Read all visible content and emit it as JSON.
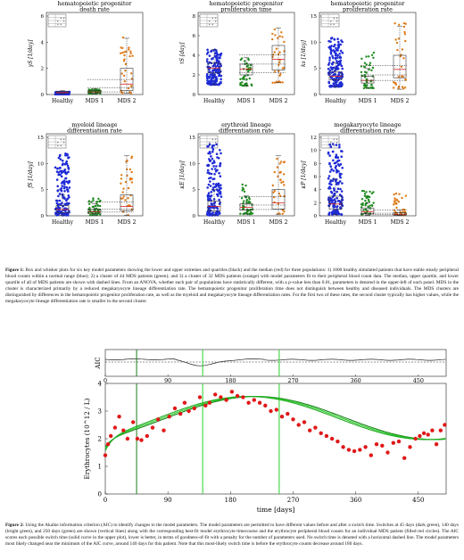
{
  "figure1": {
    "xcats": [
      "Healthy",
      "MDS 1",
      "MDS 2"
    ],
    "colors": {
      "healthy": "#1f2bd6",
      "mds1": "#1e8a1e",
      "mds2": "#e07b1a",
      "box": "#333333",
      "median": "#d62020"
    },
    "legend_rows": [
      "Healthy",
      "MDS 1",
      "MDS 2"
    ],
    "legend_cols": [
      "Healthy",
      "MDS 1",
      "MDS 2"
    ],
    "legend_marks": [
      [
        "",
        "*",
        "*"
      ],
      [
        "*",
        "",
        "*"
      ],
      [
        "*",
        "*",
        ""
      ]
    ],
    "panels": [
      {
        "title1": "hematopoietic progenitor",
        "title2": "death rate",
        "ylabel": "γS [1/day]",
        "ymax": 6,
        "yticks": [
          0,
          2,
          4,
          6
        ],
        "healthy": [
          0.02,
          0.2
        ],
        "mds1": [
          0.05,
          0.4
        ],
        "mds2": [
          0.1,
          4.4
        ],
        "box_h": [
          0.05,
          0.1,
          0.15,
          0.25,
          0.3
        ],
        "box_m1": [
          0.05,
          0.1,
          0.2,
          0.3,
          0.45
        ],
        "box_m2": [
          0.1,
          0.3,
          0.8,
          2.0,
          4.3
        ]
      },
      {
        "title1": "hematopoietic progenitor",
        "title2": "proliferation time",
        "ylabel": "τS [day]",
        "ymax": 8,
        "yticks": [
          0,
          2,
          4,
          6,
          8
        ],
        "healthy": [
          1.0,
          4.6
        ],
        "mds1": [
          0.9,
          3.8
        ],
        "mds2": [
          1.2,
          6.8
        ],
        "box_h": [
          1.0,
          2.2,
          2.7,
          3.2,
          4.6
        ],
        "box_m1": [
          0.9,
          2.0,
          2.6,
          3.1,
          3.8
        ],
        "box_m2": [
          1.2,
          2.5,
          3.6,
          5.0,
          6.8
        ]
      },
      {
        "title1": "hematopoietic progenitor",
        "title2": "proliferation rate",
        "ylabel": "ks [1/day]",
        "ymax": 15,
        "yticks": [
          0,
          5,
          10,
          15
        ],
        "healthy": [
          1.5,
          11
        ],
        "mds1": [
          1.2,
          8.0
        ],
        "mds2": [
          1.0,
          14
        ],
        "box_h": [
          1.5,
          2.8,
          3.5,
          4.3,
          6.0
        ],
        "box_m1": [
          1.2,
          2.2,
          2.7,
          3.5,
          5.0
        ],
        "box_m2": [
          1.0,
          3.2,
          4.8,
          7.5,
          13
        ]
      },
      {
        "title1": "myeloid lineage",
        "title2": "differentiation rate",
        "ylabel": "fS [1/day]",
        "ymax": 15,
        "yticks": [
          0,
          5,
          10,
          15
        ],
        "healthy": [
          0.1,
          12
        ],
        "mds1": [
          0.1,
          3.5
        ],
        "mds2": [
          0.1,
          11.5
        ],
        "box_h": [
          0.1,
          0.6,
          1.2,
          2.0,
          4.0
        ],
        "box_m1": [
          0.1,
          0.4,
          0.8,
          1.2,
          2.3
        ],
        "box_m2": [
          0.1,
          1.0,
          1.8,
          4.0,
          11.5
        ]
      },
      {
        "title1": "erythroid lineage",
        "title2": "differentiation rate",
        "ylabel": "κE [1/day]",
        "ymax": 15,
        "yticks": [
          0,
          5,
          10,
          15
        ],
        "healthy": [
          0.1,
          14
        ],
        "mds1": [
          0.3,
          6.0
        ],
        "mds2": [
          0.3,
          11.5
        ],
        "box_h": [
          0.1,
          0.9,
          1.8,
          2.8,
          5.0
        ],
        "box_m1": [
          0.3,
          1.1,
          1.6,
          2.3,
          3.8
        ],
        "box_m2": [
          0.3,
          1.3,
          2.5,
          5.0,
          11.5
        ]
      },
      {
        "title1": "megakaryocyte lineage",
        "title2": "differentiation rate",
        "ylabel": "κP [1/day]",
        "ymax": 12,
        "yticks": [
          0,
          2,
          4,
          6,
          8,
          10,
          12
        ],
        "healthy": [
          0.2,
          11
        ],
        "mds1": [
          0.1,
          4.0
        ],
        "mds2": [
          0.05,
          3.5
        ],
        "box_h": [
          0.2,
          1.0,
          1.8,
          3.0,
          5.6
        ],
        "box_m1": [
          0.1,
          0.3,
          0.6,
          1.2,
          2.0
        ],
        "box_m2": [
          0.05,
          0.1,
          0.2,
          0.5,
          0.9
        ]
      }
    ]
  },
  "caption1": {
    "label": "Figure 1:",
    "text": "Box and whisker plots for six key model parameters showing the lower and upper extremes and quartiles (black) and the median (red) for three populations: 1) 1000 healthy simulated patients that have stable steady peripheral blood counts within a normal range (blue); 2) a cluster of 44 MDS patients (green); and 3) a cluster of 32 MDS patients (orange) with model parameters fit to their peripheral blood count data. The median, upper quartile, and lower quartile of all of MDS patients are shown with dashed lines. From an ANOVA, whether each pair of populations have statistically different, with a p-value less than 0.01, parameters is denoted in the upper-left of each panel. MDS in the cluster is characterized primarily by a reduced megakaryocyte lineage differentiation rate. The hematopoietic progenitor proliferation time does not distinguish between healthy and diseased individuals. The MDS clusters are distinguished by differences in the hematopoietic progenitor proliferation rate, as well as the myeloid and megakaryocyte lineage differentiation rates. For the first two of these rates, the second cluster typically has higher values, while the megakaryocyte lineage differentiation rate is smaller in the second cluster."
  },
  "figure2": {
    "aic_label": "AIC",
    "ylabel": "Erythrocytes (10^12 / L)",
    "xlabel": "time [days]",
    "xticks": [
      0,
      90,
      180,
      270,
      360,
      450
    ],
    "yticks": [
      0,
      1,
      2,
      3,
      4
    ],
    "xmax": 490,
    "switches": [
      45,
      140,
      250
    ],
    "colors": {
      "dark_green": "#1a7f1a",
      "bright_green": "#26d226",
      "points": "#e01818",
      "curve": "#1fa81f"
    },
    "points_x": [
      0,
      4,
      8,
      14,
      20,
      26,
      32,
      40,
      46,
      52,
      60,
      68,
      76,
      84,
      92,
      100,
      108,
      114,
      120,
      128,
      136,
      144,
      150,
      158,
      166,
      174,
      182,
      190,
      198,
      206,
      214,
      222,
      230,
      238,
      246,
      254,
      262,
      270,
      278,
      286,
      294,
      302,
      310,
      318,
      326,
      334,
      342,
      350,
      358,
      366,
      374,
      382,
      390,
      398,
      406,
      414,
      422,
      430,
      438,
      446,
      452,
      458,
      464,
      470,
      476,
      482,
      488
    ],
    "points_y": [
      1.4,
      1.8,
      2.1,
      2.4,
      2.8,
      2.3,
      2.0,
      2.6,
      2.0,
      1.95,
      2.1,
      2.4,
      2.7,
      2.3,
      2.8,
      3.1,
      2.9,
      3.3,
      3.0,
      3.1,
      3.5,
      3.2,
      3.3,
      3.6,
      3.5,
      3.4,
      3.7,
      3.55,
      3.5,
      3.3,
      3.4,
      3.3,
      3.2,
      3.0,
      3.05,
      2.8,
      2.9,
      2.7,
      2.5,
      2.6,
      2.3,
      2.4,
      2.2,
      2.1,
      2.0,
      1.9,
      1.7,
      1.6,
      1.55,
      1.6,
      1.7,
      1.4,
      1.8,
      1.75,
      1.5,
      1.85,
      1.9,
      1.3,
      1.7,
      2.0,
      2.1,
      2.2,
      2.15,
      2.3,
      1.8,
      2.3,
      2.5
    ]
  },
  "caption2": {
    "label": "Figure 2:",
    "text": "Using the Akaike information criterion (AIC) to identify changes to the model parameters. The model parameters are permitted to have different values before and after a switch time. Switches at 45 days (dark green), 140 days (bright green), and 250 days (green) are shown (vertical lines) along with the corresponding best-fit model erythrocyte timecourse and the erythrocyte peripheral blood counts for an individual MDS patient (filled red circles). The AIC scores each possible switch time (solid curve in the upper plot), lower is better, in terms of goodness-of-fit with a penalty for the number of parameters used. No switch time is denoted with a horizontal dashed line. The model parameters most likely changed near the minimum of the AIC curve, around 140 days for this patient. Note that this most-likely switch time is before the erythrocyte counts decrease around 180 days."
  }
}
